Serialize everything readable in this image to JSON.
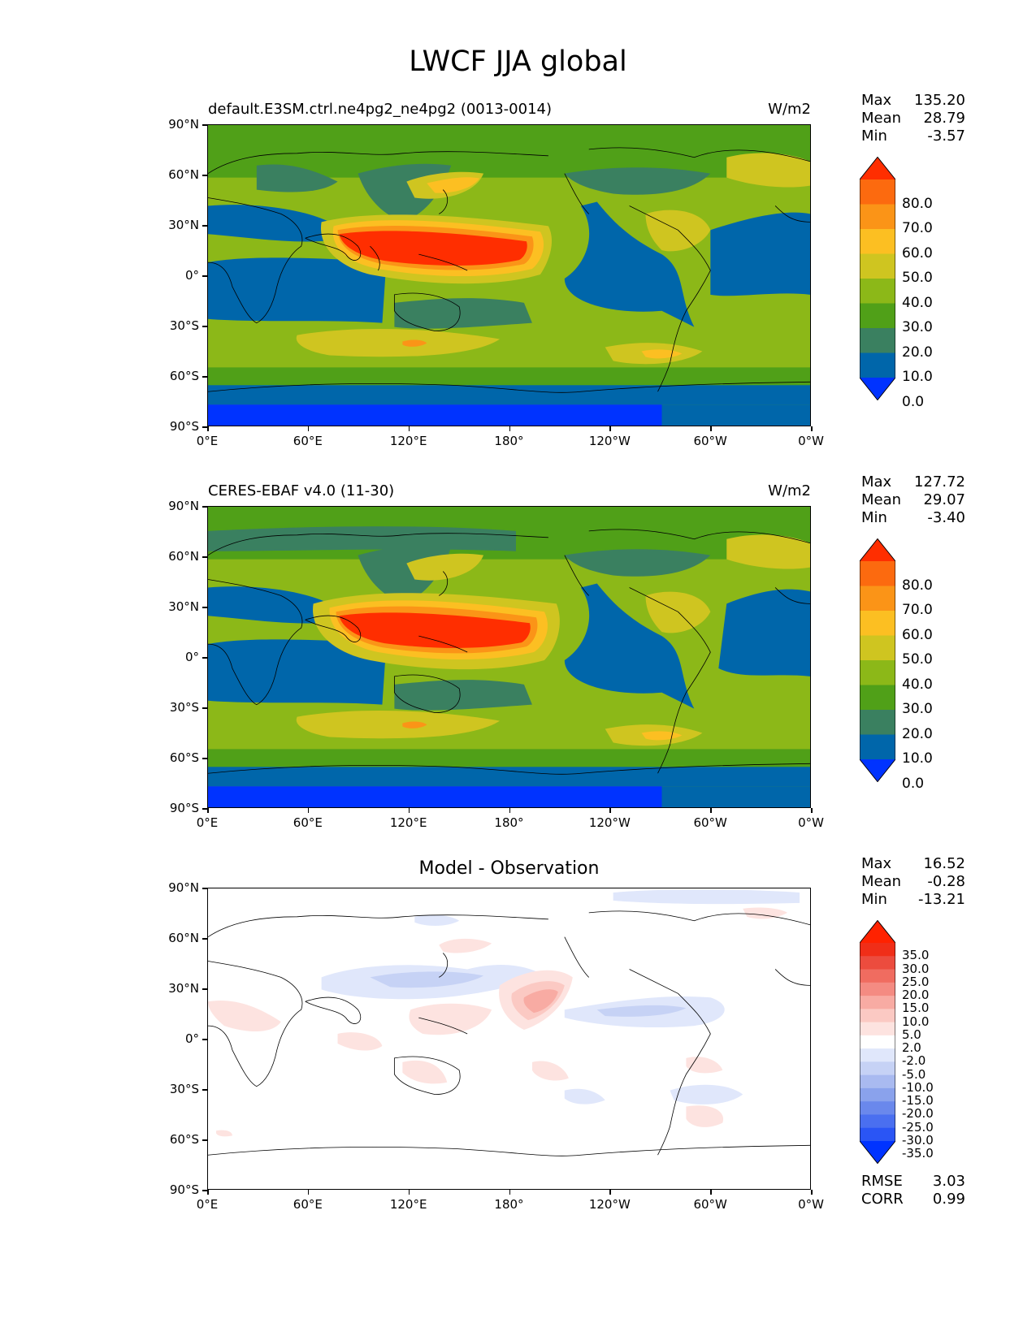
{
  "title": "LWCF JJA global",
  "y_ticks": [
    "90°N",
    "60°N",
    "30°N",
    "0°",
    "30°S",
    "60°S",
    "90°S"
  ],
  "x_ticks": [
    "0°E",
    "60°E",
    "120°E",
    "180°",
    "120°W",
    "60°W",
    "0°W"
  ],
  "panels": [
    {
      "left_title": "default.E3SM.ctrl.ne4pg2_ne4pg2 (0013-0014)",
      "center_title": "",
      "units": "W/m2",
      "stats": [
        [
          "Max",
          "135.20"
        ],
        [
          "Mean",
          "28.79"
        ],
        [
          "Min",
          "-3.57"
        ]
      ],
      "colorbar_labels": [
        "80.0",
        "70.0",
        "60.0",
        "50.0",
        "40.0",
        "30.0",
        "20.0",
        "10.0",
        "0.0"
      ]
    },
    {
      "left_title": "CERES-EBAF v4.0 (11-30)",
      "center_title": "",
      "units": "W/m2",
      "stats": [
        [
          "Max",
          "127.72"
        ],
        [
          "Mean",
          "29.07"
        ],
        [
          "Min",
          "-3.40"
        ]
      ],
      "colorbar_labels": [
        "80.0",
        "70.0",
        "60.0",
        "50.0",
        "40.0",
        "30.0",
        "20.0",
        "10.0",
        "0.0"
      ]
    },
    {
      "left_title": "",
      "center_title": "Model - Observation",
      "units": "",
      "stats": [
        [
          "Max",
          "16.52"
        ],
        [
          "Mean",
          "-0.28"
        ],
        [
          "Min",
          "-13.21"
        ]
      ],
      "colorbar_labels": [
        "35.0",
        "30.0",
        "25.0",
        "20.0",
        "15.0",
        "10.0",
        "5.0",
        "2.0",
        "-2.0",
        "-5.0",
        "-10.0",
        "-15.0",
        "-20.0",
        "-25.0",
        "-30.0",
        "-35.0"
      ],
      "metrics": [
        [
          "RMSE",
          "3.03"
        ],
        [
          "CORR",
          "0.99"
        ]
      ]
    }
  ],
  "colors": {
    "field_levels": [
      "#0033ff",
      "#0066aa",
      "#3a8060",
      "#50a018",
      "#8cb818",
      "#cfc520",
      "#fcbf22",
      "#fb9417",
      "#fc6a0f",
      "#ff2e00"
    ],
    "diff_levels": [
      "#0033ff",
      "#2a55f5",
      "#4a6ff0",
      "#6a88ec",
      "#8aa2ec",
      "#a9baf0",
      "#c6d2f5",
      "#e0e7fb",
      "#ffffff",
      "#fde3e0",
      "#fbc9c3",
      "#f8aba3",
      "#f48b82",
      "#f06c60",
      "#ec4c3e",
      "#f02e18",
      "#ff2200"
    ]
  }
}
